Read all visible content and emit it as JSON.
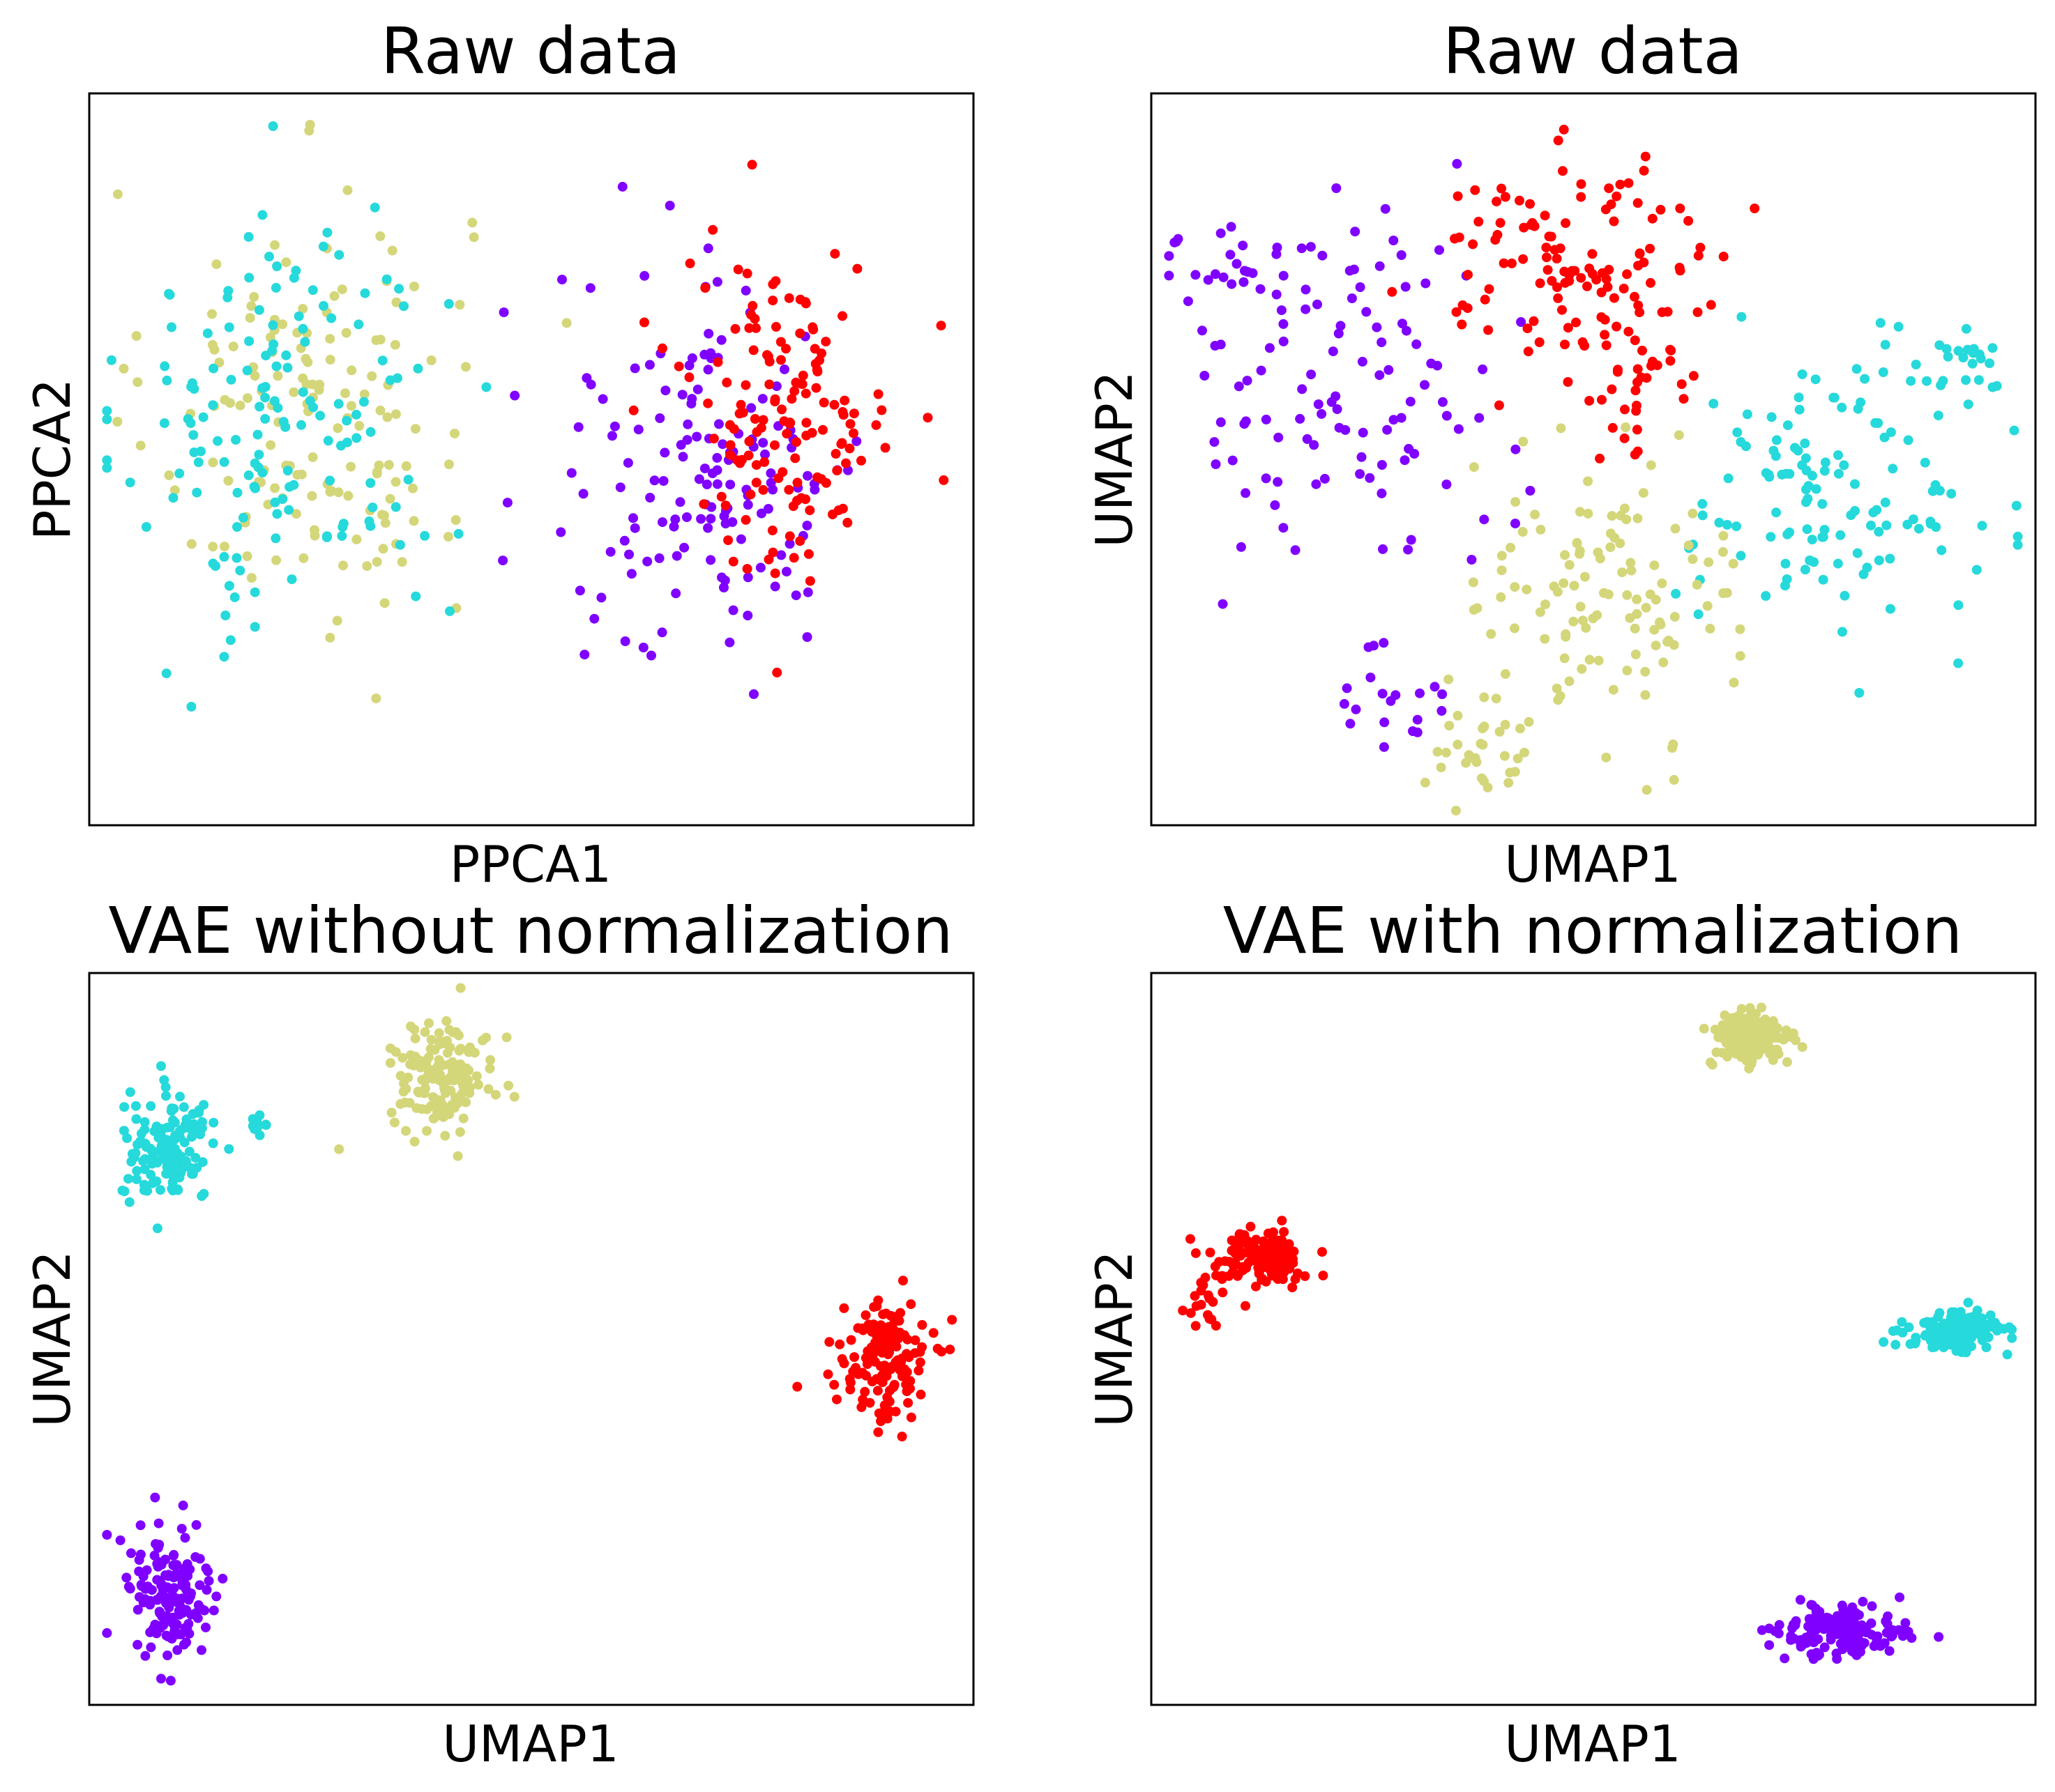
{
  "chart_data": [
    {
      "type": "scatter",
      "title": "Raw data",
      "xlabel": "PPCA1",
      "ylabel": "PPCA2",
      "xlim": [
        0,
        100
      ],
      "ylim": [
        0,
        100
      ],
      "grid": false,
      "legend": "none",
      "ticks": "hidden",
      "series": [
        {
          "color": "#d4d67a",
          "clusters": [
            {
              "cx": 25,
              "cy": 57,
              "sx": 9,
              "sy": 15,
              "n": 150
            }
          ]
        },
        {
          "color": "#26d9db",
          "clusters": [
            {
              "cx": 22,
              "cy": 55,
              "sx": 9,
              "sy": 15,
              "n": 150
            }
          ]
        },
        {
          "color": "#8000ff",
          "clusters": [
            {
              "cx": 70,
              "cy": 48,
              "sx": 9,
              "sy": 14,
              "n": 150
            }
          ]
        },
        {
          "color": "#ff0000",
          "clusters": [
            {
              "cx": 79,
              "cy": 57,
              "sx": 6,
              "sy": 11,
              "n": 150
            }
          ]
        }
      ]
    },
    {
      "type": "scatter",
      "title": "Raw data",
      "xlabel": "UMAP1",
      "ylabel": "UMAP2",
      "xlim": [
        0,
        100
      ],
      "ylim": [
        0,
        100
      ],
      "grid": false,
      "legend": "none",
      "ticks": "hidden",
      "series": [
        {
          "color": "#8000ff",
          "clusters": [
            {
              "cx": 22,
              "cy": 60,
              "sx": 9,
              "sy": 12,
              "n": 110
            },
            {
              "cx": 8,
              "cy": 77,
              "sx": 4,
              "sy": 3,
              "n": 20
            },
            {
              "cx": 28,
              "cy": 18,
              "sx": 3,
              "sy": 4,
              "n": 20
            }
          ]
        },
        {
          "color": "#ff0000",
          "clusters": [
            {
              "cx": 48,
              "cy": 77,
              "sx": 9,
              "sy": 7,
              "n": 120
            },
            {
              "cx": 55,
              "cy": 60,
              "sx": 4,
              "sy": 5,
              "n": 30
            }
          ]
        },
        {
          "color": "#26d9db",
          "clusters": [
            {
              "cx": 77,
              "cy": 45,
              "sx": 8,
              "sy": 10,
              "n": 130
            },
            {
              "cx": 92,
              "cy": 62,
              "sx": 3,
              "sy": 3,
              "n": 20
            }
          ]
        },
        {
          "color": "#d4d67a",
          "clusters": [
            {
              "cx": 52,
              "cy": 32,
              "sx": 7,
              "sy": 10,
              "n": 120
            },
            {
              "cx": 37,
              "cy": 11,
              "sx": 3,
              "sy": 4,
              "n": 30
            }
          ]
        }
      ]
    },
    {
      "type": "scatter",
      "title": "VAE without normalization",
      "xlabel": "UMAP1",
      "ylabel": "UMAP2",
      "xlim": [
        0,
        100
      ],
      "ylim": [
        0,
        100
      ],
      "grid": false,
      "legend": "none",
      "ticks": "hidden",
      "series": [
        {
          "color": "#26d9db",
          "clusters": [
            {
              "cx": 9,
              "cy": 76,
              "sx": 2.6,
              "sy": 3.6,
              "n": 140
            },
            {
              "cx": 19,
              "cy": 79,
              "sx": 0.6,
              "sy": 0.8,
              "n": 10
            }
          ]
        },
        {
          "color": "#d4d67a",
          "clusters": [
            {
              "cx": 40,
              "cy": 86,
              "sx": 3.0,
              "sy": 3.6,
              "n": 150
            }
          ]
        },
        {
          "color": "#ff0000",
          "clusters": [
            {
              "cx": 90,
              "cy": 47,
              "sx": 2.4,
              "sy": 4.0,
              "n": 150
            }
          ]
        },
        {
          "color": "#8000ff",
          "clusters": [
            {
              "cx": 9,
              "cy": 15,
              "sx": 2.6,
              "sy": 5.2,
              "n": 150
            }
          ]
        }
      ]
    },
    {
      "type": "scatter",
      "title": "VAE with normalization",
      "xlabel": "UMAP1",
      "ylabel": "UMAP2",
      "xlim": [
        0,
        100
      ],
      "ylim": [
        0,
        100
      ],
      "grid": false,
      "legend": "none",
      "ticks": "hidden",
      "series": [
        {
          "color": "#d4d67a",
          "clusters": [
            {
              "cx": 68,
              "cy": 91,
              "sx": 2.4,
              "sy": 2.0,
              "n": 150
            }
          ]
        },
        {
          "color": "#ff0000",
          "clusters": [
            {
              "cx": 12,
              "cy": 61,
              "sx": 2.8,
              "sy": 2.0,
              "n": 135
            },
            {
              "cx": 6,
              "cy": 54,
              "sx": 1.0,
              "sy": 1.2,
              "n": 15
            }
          ]
        },
        {
          "color": "#26d9db",
          "clusters": [
            {
              "cx": 91,
              "cy": 51,
              "sx": 2.7,
              "sy": 1.4,
              "n": 150
            }
          ]
        },
        {
          "color": "#8000ff",
          "clusters": [
            {
              "cx": 78,
              "cy": 10,
              "sx": 3.5,
              "sy": 1.7,
              "n": 150
            }
          ]
        }
      ]
    }
  ]
}
